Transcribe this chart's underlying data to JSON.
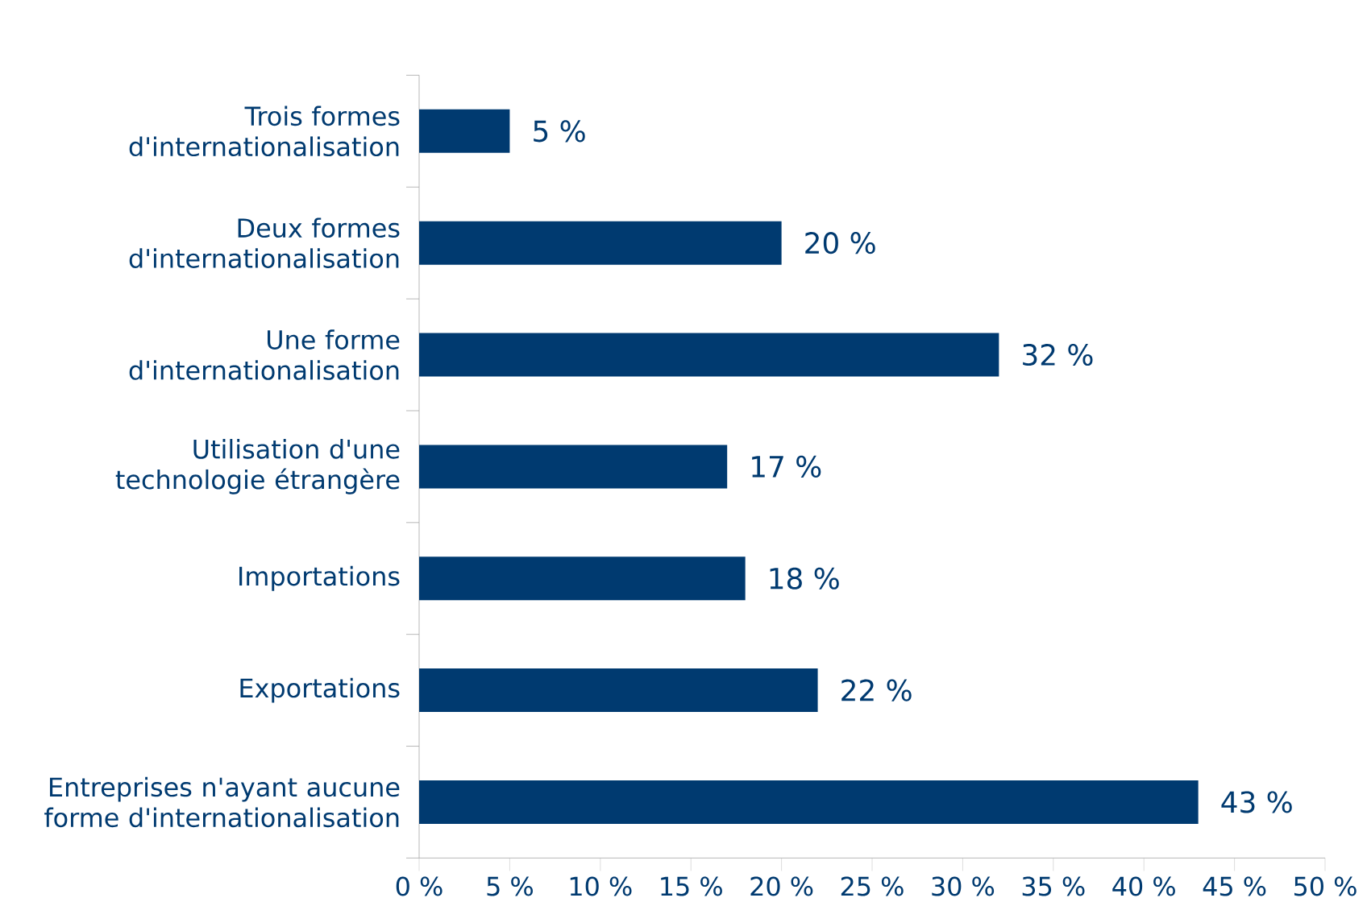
{
  "chart_data": {
    "type": "bar",
    "orientation": "horizontal",
    "categories": [
      "Trois formes d'internationalisation",
      "Deux formes d'internationalisation",
      "Une forme d'internationalisation",
      "Utilisation d'une technologie étrangère",
      "Importations",
      "Exportations",
      "Entreprises n'ayant aucune forme d'internationalisation"
    ],
    "values": [
      5,
      20,
      32,
      17,
      18,
      22,
      43
    ],
    "value_labels": [
      "5 %",
      "20 %",
      "32 %",
      "17 %",
      "18 %",
      "22 %",
      "43 %"
    ],
    "color": "#003a70",
    "xlim": [
      0,
      50
    ],
    "xticks": [
      {
        "value": 0,
        "label": "0 %"
      },
      {
        "value": 5,
        "label": "5 %"
      },
      {
        "value": 10,
        "label": "10 %"
      },
      {
        "value": 15,
        "label": "15 %"
      },
      {
        "value": 20,
        "label": "20 %"
      },
      {
        "value": 25,
        "label": "25 %"
      },
      {
        "value": 30,
        "label": "30 %"
      },
      {
        "value": 35,
        "label": "35 %"
      },
      {
        "value": 40,
        "label": "40 %"
      },
      {
        "value": 45,
        "label": "45 %"
      },
      {
        "value": 50,
        "label": "50 %"
      }
    ],
    "grid": false
  }
}
